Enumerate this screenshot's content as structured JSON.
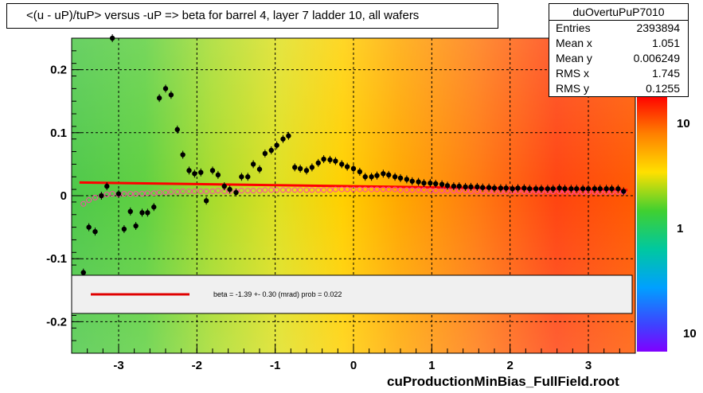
{
  "title": "<(u - uP)/tuP> versus  -uP => beta for barrel 4, layer 7 ladder 10, all wafers",
  "footer": "cuProductionMinBias_FullField.root",
  "stats": {
    "name": "duOvertuPuP7010",
    "rows": [
      {
        "label": "Entries",
        "value": "2393894"
      },
      {
        "label": "Mean x",
        "value": "1.051"
      },
      {
        "label": "Mean y",
        "value": "0.006249"
      },
      {
        "label": "RMS x",
        "value": "1.745"
      },
      {
        "label": "RMS y",
        "value": "0.1255"
      }
    ]
  },
  "legend": {
    "text": "beta =   -1.39 +-  0.30 (mrad) prob = 0.022",
    "line_color": "#ff0000"
  },
  "chart_data": {
    "type": "scatter",
    "xlim": [
      -3.6,
      3.6
    ],
    "ylim": [
      -0.25,
      0.25
    ],
    "x_ticks": [
      -3,
      -2,
      -1,
      0,
      1,
      2,
      3
    ],
    "x_tick_labels": [
      "-3",
      "-2",
      "-1",
      "0",
      "1",
      "2",
      "3"
    ],
    "y_ticks": [
      -0.2,
      -0.1,
      0,
      0.1,
      0.2
    ],
    "y_tick_labels": [
      "-0.2",
      "-0.1",
      "0",
      "0.1",
      "0.2"
    ],
    "grid": true,
    "colorbar": {
      "scale": "log",
      "tick_labels": [
        "10",
        "1",
        "10"
      ]
    },
    "fit_line": {
      "x": [
        -3.5,
        3.5
      ],
      "y": [
        0.021,
        0.009
      ],
      "color": "#ff0000"
    },
    "series": [
      {
        "marker": "filled-circle",
        "color": "#000000",
        "x": [
          -3.45,
          -3.38,
          -3.3,
          -3.22,
          -3.15,
          -3.08,
          -3.0,
          -2.93,
          -2.85,
          -2.78,
          -2.7,
          -2.63,
          -2.55,
          -2.48,
          -2.4,
          -2.33,
          -2.25,
          -2.18,
          -2.1,
          -2.03,
          -1.95,
          -1.88,
          -1.8,
          -1.73,
          -1.65,
          -1.58,
          -1.5,
          -1.43,
          -1.35,
          -1.28,
          -1.2,
          -1.13,
          -1.05,
          -0.98,
          -0.9,
          -0.83,
          -0.75,
          -0.68,
          -0.6,
          -0.53,
          -0.45,
          -0.38,
          -0.3,
          -0.23,
          -0.15,
          -0.08,
          0.0,
          0.08,
          0.15,
          0.23,
          0.3,
          0.38,
          0.45,
          0.53,
          0.6,
          0.68,
          0.75,
          0.83,
          0.9,
          0.98,
          1.05,
          1.13,
          1.2,
          1.28,
          1.35,
          1.43,
          1.5,
          1.58,
          1.65,
          1.73,
          1.8,
          1.88,
          1.95,
          2.03,
          2.1,
          2.18,
          2.25,
          2.33,
          2.4,
          2.48,
          2.55,
          2.63,
          2.7,
          2.78,
          2.85,
          2.93,
          3.0,
          3.08,
          3.15,
          3.23,
          3.3,
          3.38,
          3.45
        ],
        "y": [
          -0.122,
          -0.05,
          -0.057,
          0.0,
          0.015,
          0.25,
          0.003,
          -0.053,
          -0.025,
          -0.048,
          -0.027,
          -0.027,
          -0.018,
          0.155,
          0.17,
          0.16,
          0.105,
          0.065,
          0.04,
          0.035,
          0.037,
          -0.008,
          0.04,
          0.033,
          0.015,
          0.01,
          0.005,
          0.03,
          0.03,
          0.05,
          0.042,
          0.067,
          0.072,
          0.08,
          0.09,
          0.095,
          0.045,
          0.043,
          0.04,
          0.045,
          0.052,
          0.058,
          0.057,
          0.055,
          0.05,
          0.046,
          0.043,
          0.038,
          0.03,
          0.03,
          0.032,
          0.035,
          0.033,
          0.03,
          0.028,
          0.026,
          0.023,
          0.022,
          0.02,
          0.02,
          0.019,
          0.018,
          0.016,
          0.015,
          0.015,
          0.014,
          0.014,
          0.014,
          0.013,
          0.013,
          0.012,
          0.012,
          0.012,
          0.011,
          0.012,
          0.012,
          0.011,
          0.011,
          0.011,
          0.011,
          0.011,
          0.012,
          0.011,
          0.011,
          0.011,
          0.011,
          0.011,
          0.011,
          0.011,
          0.011,
          0.011,
          0.011,
          0.007
        ]
      },
      {
        "marker": "open-circle",
        "color": "#ff44aa",
        "x": [
          -3.45,
          -3.38,
          -3.3,
          -3.22,
          -3.15,
          -3.08,
          -3.0,
          -2.93,
          -2.85,
          -2.78,
          -2.7,
          -2.63,
          -2.55,
          -2.48,
          -2.4,
          -2.33,
          -2.25,
          -2.18,
          -2.1,
          -2.03,
          -1.95,
          -1.88,
          -1.8,
          -1.73,
          -1.65,
          -1.58,
          -1.5,
          -1.43,
          -1.35,
          -1.28,
          -1.2,
          -1.13,
          -1.05,
          -0.98,
          -0.9,
          -0.83,
          -0.75,
          -0.68,
          -0.6,
          -0.53,
          -0.45,
          -0.38,
          -0.3,
          -0.23,
          -0.15,
          -0.08,
          0.0,
          0.08,
          0.15,
          0.23,
          0.3,
          0.38,
          0.45,
          0.53,
          0.6,
          0.68,
          0.75,
          0.83,
          0.9,
          0.98,
          1.05,
          1.13,
          1.2,
          1.28,
          1.35,
          1.43,
          1.5,
          1.58,
          1.65,
          1.73,
          1.8,
          1.88,
          1.95,
          2.03,
          2.1,
          2.18,
          2.25,
          2.33,
          2.4,
          2.48,
          2.55,
          2.63,
          2.7,
          2.78,
          2.85,
          2.93,
          3.0,
          3.08,
          3.15,
          3.23,
          3.3,
          3.38,
          3.45
        ],
        "y": [
          -0.013,
          -0.007,
          -0.003,
          0.0,
          0.002,
          0.003,
          0.002,
          0.003,
          0.003,
          0.003,
          0.003,
          0.004,
          0.004,
          0.005,
          0.005,
          0.006,
          0.006,
          0.007,
          0.007,
          0.007,
          0.007,
          0.007,
          0.007,
          0.008,
          0.007,
          0.007,
          0.007,
          0.008,
          0.008,
          0.008,
          0.008,
          0.009,
          0.009,
          0.009,
          0.009,
          0.009,
          0.009,
          0.009,
          0.009,
          0.009,
          0.009,
          0.009,
          0.009,
          0.01,
          0.01,
          0.01,
          0.01,
          0.01,
          0.01,
          0.01,
          0.01,
          0.01,
          0.01,
          0.01,
          0.009,
          0.009,
          0.009,
          0.009,
          0.009,
          0.008,
          0.008,
          0.008,
          0.008,
          0.008,
          0.008,
          0.008,
          0.007,
          0.007,
          0.007,
          0.007,
          0.007,
          0.007,
          0.007,
          0.007,
          0.007,
          0.007,
          0.007,
          0.007,
          0.007,
          0.007,
          0.007,
          0.007,
          0.007,
          0.006,
          0.006,
          0.006,
          0.006,
          0.006,
          0.006,
          0.006,
          0.006,
          0.006,
          0.006
        ]
      }
    ]
  }
}
